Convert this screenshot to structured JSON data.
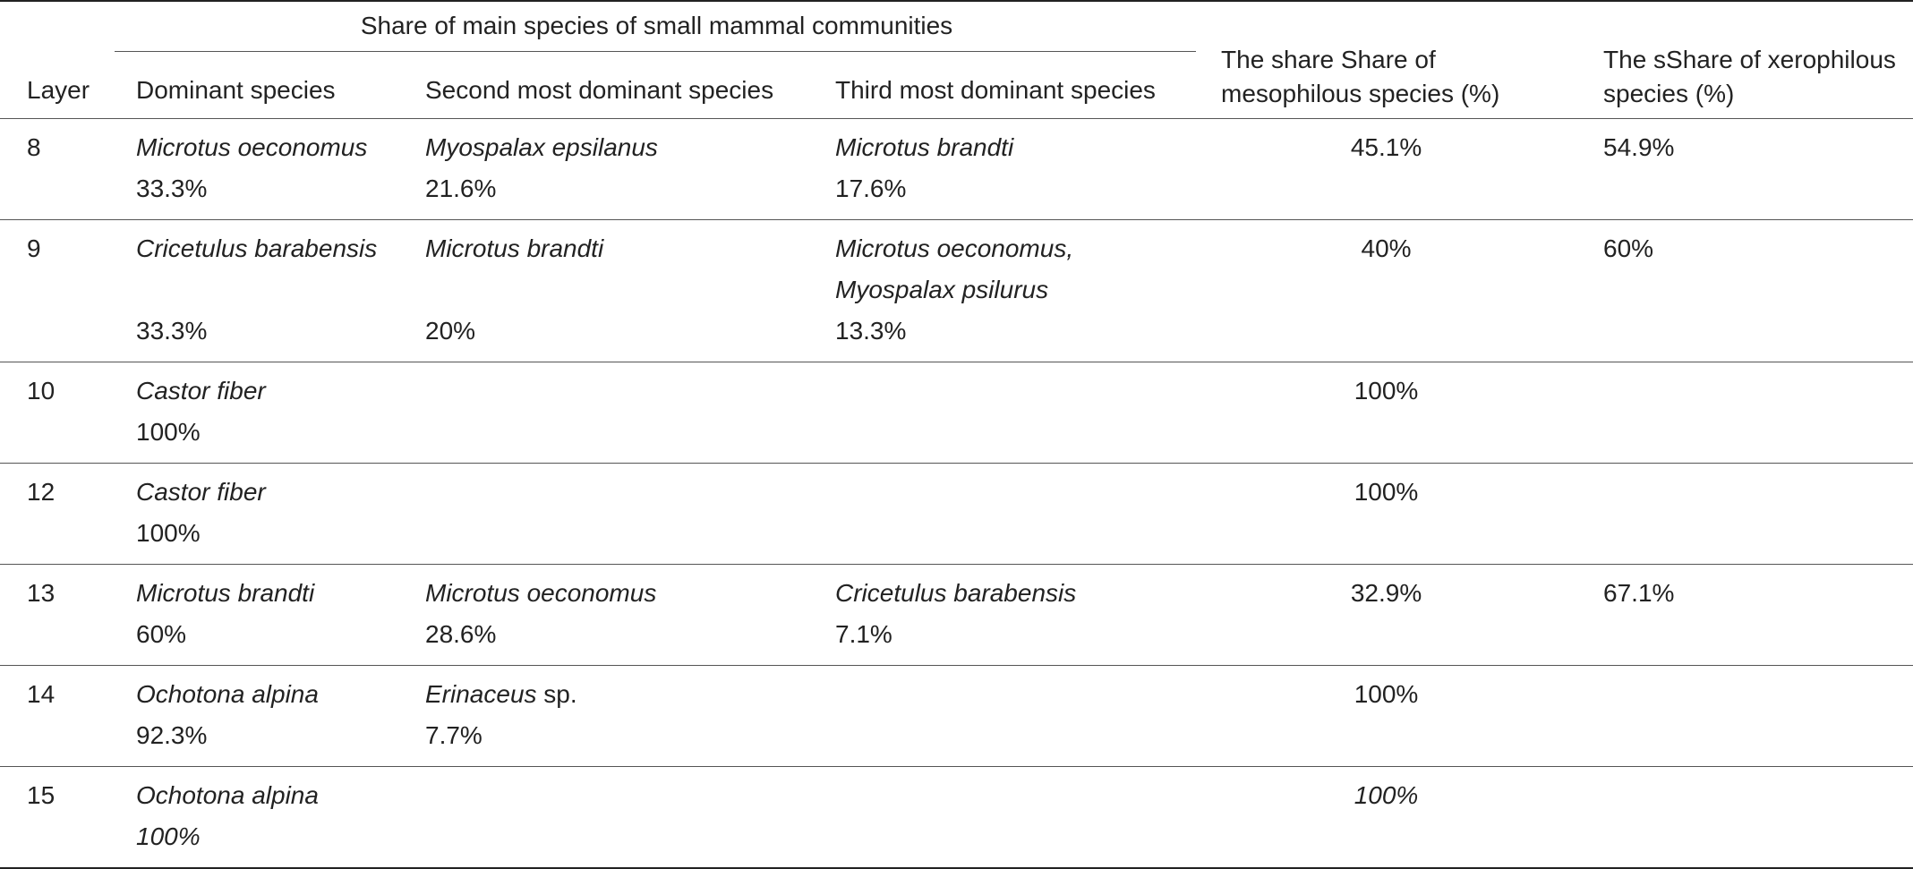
{
  "table": {
    "header": {
      "group_label": "Share of main species of small mammal communities",
      "layer": "Layer",
      "dominant": "Dominant species",
      "second": "Second most dominant species",
      "third": "Third most dominant species",
      "meso_line1": "The share Share of",
      "meso_line2": "mesophilous species (%)",
      "xero_line1": "The sShare of xerophilous",
      "xero_line2": "species (%)"
    },
    "rows": [
      {
        "layer": "8",
        "dominant_species": "Microtus oeconomus",
        "dominant_pct": "33.3%",
        "second_species": "Myospalax epsilanus",
        "second_pct": "21.6%",
        "third_species": "Microtus brandti",
        "third_pct": "17.6%",
        "meso": "45.1%",
        "xero": "54.9%"
      },
      {
        "layer": "9",
        "dominant_species": "Cricetulus barabensis",
        "dominant_pct": "33.3%",
        "second_species": "Microtus brandti",
        "second_pct": "20%",
        "third_species_1": "Microtus oeconomus,",
        "third_species_2": "Myospalax psilurus",
        "third_pct": "13.3%",
        "meso": "40%",
        "xero": "60%"
      },
      {
        "layer": "10",
        "dominant_species": "Castor fiber",
        "dominant_pct": "100%",
        "meso": "100%"
      },
      {
        "layer": "12",
        "dominant_species": "Castor fiber",
        "dominant_pct": "100%",
        "meso": "100%"
      },
      {
        "layer": "13",
        "dominant_species": "Microtus brandti",
        "dominant_pct": "60%",
        "second_species": "Microtus oeconomus",
        "second_pct": "28.6%",
        "third_species": "Cricetulus barabensis",
        "third_pct": "7.1%",
        "meso": "32.9%",
        "xero": "67.1%"
      },
      {
        "layer": "14",
        "dominant_species": "Ochotona alpina",
        "dominant_pct": "92.3%",
        "second_species_genus": "Erinaceus",
        "second_species_suffix": " sp.",
        "second_pct": "7.7%",
        "meso": "100%"
      },
      {
        "layer": "15",
        "dominant_species": "Ochotona alpina",
        "dominant_pct": "100%",
        "meso": "100%"
      }
    ]
  }
}
